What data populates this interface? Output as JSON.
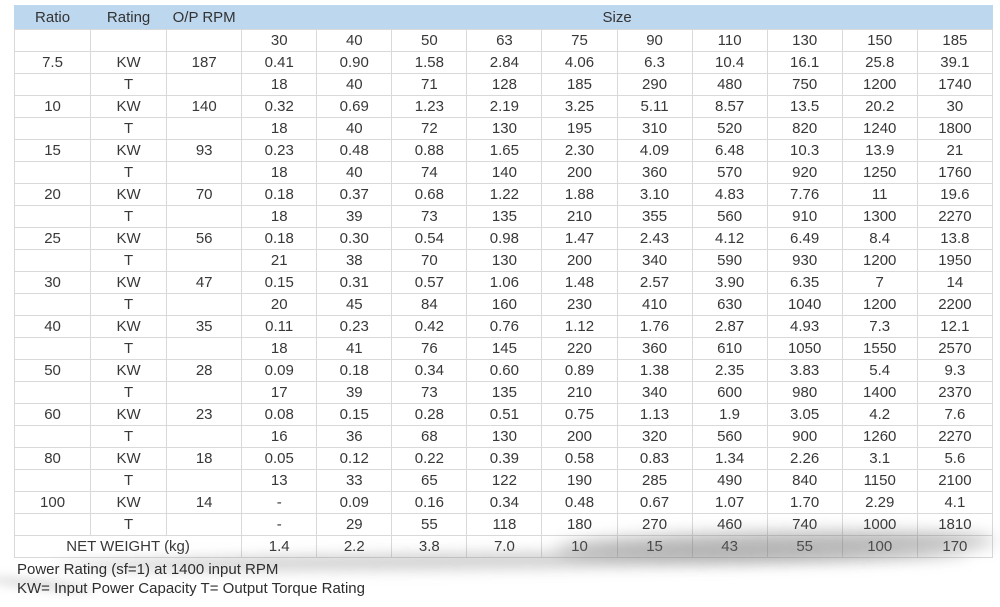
{
  "page": {
    "footer_line1": "Power Rating (sf=1) at 1400 input RPM",
    "footer_line2": "KW= Input Power Capacity  T= Output Torque Rating"
  },
  "colors": {
    "header_bg": "#bdd7ee",
    "grid": "#d9d9d9",
    "grid_strong": "#aeaeae",
    "text": "#383838"
  },
  "table": {
    "header": {
      "ratio": "Ratio",
      "rating": "Rating",
      "op_rpm": "O/P RPM",
      "size": "Size"
    },
    "rating_labels": {
      "kw": "KW",
      "t": "T"
    },
    "sizes": [
      "30",
      "40",
      "50",
      "63",
      "75",
      "90",
      "110",
      "130",
      "150",
      "185"
    ],
    "groups": [
      {
        "ratio": "7.5",
        "op_rpm": "187",
        "kw": [
          "0.41",
          "0.90",
          "1.58",
          "2.84",
          "4.06",
          "6.3",
          "10.4",
          "16.1",
          "25.8",
          "39.1"
        ],
        "t": [
          "18",
          "40",
          "71",
          "128",
          "185",
          "290",
          "480",
          "750",
          "1200",
          "1740"
        ]
      },
      {
        "ratio": "10",
        "op_rpm": "140",
        "kw": [
          "0.32",
          "0.69",
          "1.23",
          "2.19",
          "3.25",
          "5.11",
          "8.57",
          "13.5",
          "20.2",
          "30"
        ],
        "t": [
          "18",
          "40",
          "72",
          "130",
          "195",
          "310",
          "520",
          "820",
          "1240",
          "1800"
        ]
      },
      {
        "ratio": "15",
        "op_rpm": "93",
        "kw": [
          "0.23",
          "0.48",
          "0.88",
          "1.65",
          "2.30",
          "4.09",
          "6.48",
          "10.3",
          "13.9",
          "21"
        ],
        "t": [
          "18",
          "40",
          "74",
          "140",
          "200",
          "360",
          "570",
          "920",
          "1250",
          "1760"
        ]
      },
      {
        "ratio": "20",
        "op_rpm": "70",
        "kw": [
          "0.18",
          "0.37",
          "0.68",
          "1.22",
          "1.88",
          "3.10",
          "4.83",
          "7.76",
          "11",
          "19.6"
        ],
        "t": [
          "18",
          "39",
          "73",
          "135",
          "210",
          "355",
          "560",
          "910",
          "1300",
          "2270"
        ]
      },
      {
        "ratio": "25",
        "op_rpm": "56",
        "kw": [
          "0.18",
          "0.30",
          "0.54",
          "0.98",
          "1.47",
          "2.43",
          "4.12",
          "6.49",
          "8.4",
          "13.8"
        ],
        "t": [
          "21",
          "38",
          "70",
          "130",
          "200",
          "340",
          "590",
          "930",
          "1200",
          "1950"
        ]
      },
      {
        "ratio": "30",
        "op_rpm": "47",
        "kw": [
          "0.15",
          "0.31",
          "0.57",
          "1.06",
          "1.48",
          "2.57",
          "3.90",
          "6.35",
          "7",
          "14"
        ],
        "t": [
          "20",
          "45",
          "84",
          "160",
          "230",
          "410",
          "630",
          "1040",
          "1200",
          "2200"
        ]
      },
      {
        "ratio": "40",
        "op_rpm": "35",
        "kw": [
          "0.11",
          "0.23",
          "0.42",
          "0.76",
          "1.12",
          "1.76",
          "2.87",
          "4.93",
          "7.3",
          "12.1"
        ],
        "t": [
          "18",
          "41",
          "76",
          "145",
          "220",
          "360",
          "610",
          "1050",
          "1550",
          "2570"
        ]
      },
      {
        "ratio": "50",
        "op_rpm": "28",
        "kw": [
          "0.09",
          "0.18",
          "0.34",
          "0.60",
          "0.89",
          "1.38",
          "2.35",
          "3.83",
          "5.4",
          "9.3"
        ],
        "t": [
          "17",
          "39",
          "73",
          "135",
          "210",
          "340",
          "600",
          "980",
          "1400",
          "2370"
        ]
      },
      {
        "ratio": "60",
        "op_rpm": "23",
        "kw": [
          "0.08",
          "0.15",
          "0.28",
          "0.51",
          "0.75",
          "1.13",
          "1.9",
          "3.05",
          "4.2",
          "7.6"
        ],
        "t": [
          "16",
          "36",
          "68",
          "130",
          "200",
          "320",
          "560",
          "900",
          "1260",
          "2270"
        ]
      },
      {
        "ratio": "80",
        "op_rpm": "18",
        "kw": [
          "0.05",
          "0.12",
          "0.22",
          "0.39",
          "0.58",
          "0.83",
          "1.34",
          "2.26",
          "3.1",
          "5.6"
        ],
        "t": [
          "13",
          "33",
          "65",
          "122",
          "190",
          "285",
          "490",
          "840",
          "1150",
          "2100"
        ]
      },
      {
        "ratio": "100",
        "op_rpm": "14",
        "kw": [
          "-",
          "0.09",
          "0.16",
          "0.34",
          "0.48",
          "0.67",
          "1.07",
          "1.70",
          "2.29",
          "4.1"
        ],
        "t": [
          "-",
          "29",
          "55",
          "118",
          "180",
          "270",
          "460",
          "740",
          "1000",
          "1810"
        ]
      }
    ],
    "net_weight": {
      "label": "NET WEIGHT (kg)",
      "values": [
        "1.4",
        "2.2",
        "3.8",
        "7.0",
        "10",
        "15",
        "43",
        "55",
        "100",
        "170"
      ]
    }
  }
}
